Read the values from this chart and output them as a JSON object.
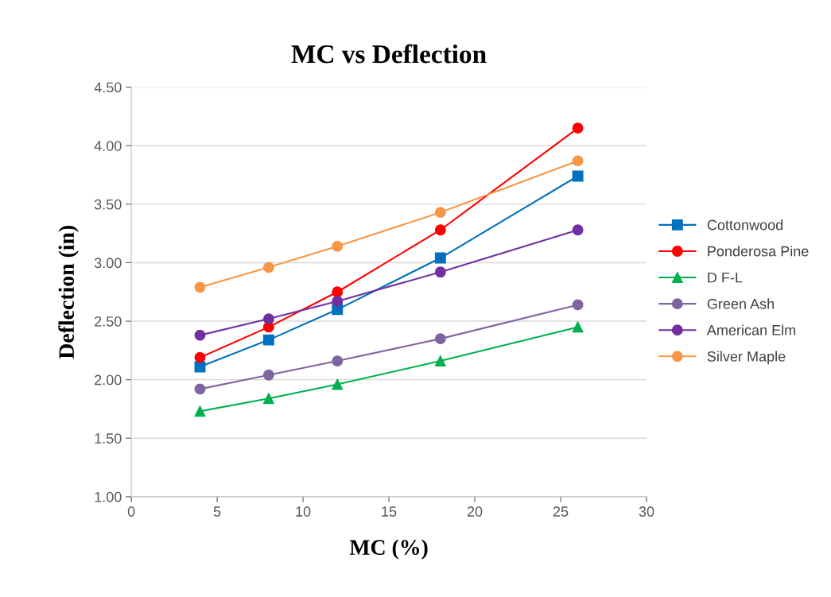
{
  "chart_data": {
    "type": "line",
    "title": "MC vs Deflection",
    "xlabel": "MC (%)",
    "ylabel": "Deflection (in)",
    "x": [
      4,
      8,
      12,
      18,
      26
    ],
    "series": [
      {
        "name": "Cottonwood",
        "color": "#0070c0",
        "marker": "square",
        "values": [
          2.11,
          2.34,
          2.6,
          3.04,
          3.74
        ]
      },
      {
        "name": "Ponderosa Pine",
        "color": "#ff0000",
        "marker": "circle",
        "values": [
          2.19,
          2.45,
          2.75,
          3.28,
          4.15
        ]
      },
      {
        "name": "D F-L",
        "color": "#00b050",
        "marker": "triangle",
        "values": [
          1.73,
          1.84,
          1.96,
          2.16,
          2.45
        ]
      },
      {
        "name": "Green Ash",
        "color": "#8064a2",
        "marker": "circle",
        "values": [
          1.92,
          2.04,
          2.16,
          2.35,
          2.64
        ]
      },
      {
        "name": "American Elm",
        "color": "#7030a0",
        "marker": "circle",
        "values": [
          2.38,
          2.52,
          2.67,
          2.92,
          3.28
        ]
      },
      {
        "name": "Silver Maple",
        "color": "#f79646",
        "marker": "circle",
        "values": [
          2.79,
          2.96,
          3.14,
          3.43,
          3.87
        ]
      }
    ],
    "xlim": [
      0,
      30
    ],
    "xticks": [
      0,
      5,
      10,
      15,
      20,
      25,
      30
    ],
    "ylim": [
      1.0,
      4.5
    ],
    "yticks": [
      {
        "value": 1.0,
        "label": "1.00"
      },
      {
        "value": 1.5,
        "label": "1.50"
      },
      {
        "value": 2.0,
        "label": "2.00"
      },
      {
        "value": 2.5,
        "label": "2.50"
      },
      {
        "value": 3.0,
        "label": "3.00"
      },
      {
        "value": 3.5,
        "label": "3.50"
      },
      {
        "value": 4.0,
        "label": "4.00"
      },
      {
        "value": 4.5,
        "label": "4.50"
      }
    ],
    "grid": "y",
    "legend": "right",
    "line_style": "solid"
  }
}
